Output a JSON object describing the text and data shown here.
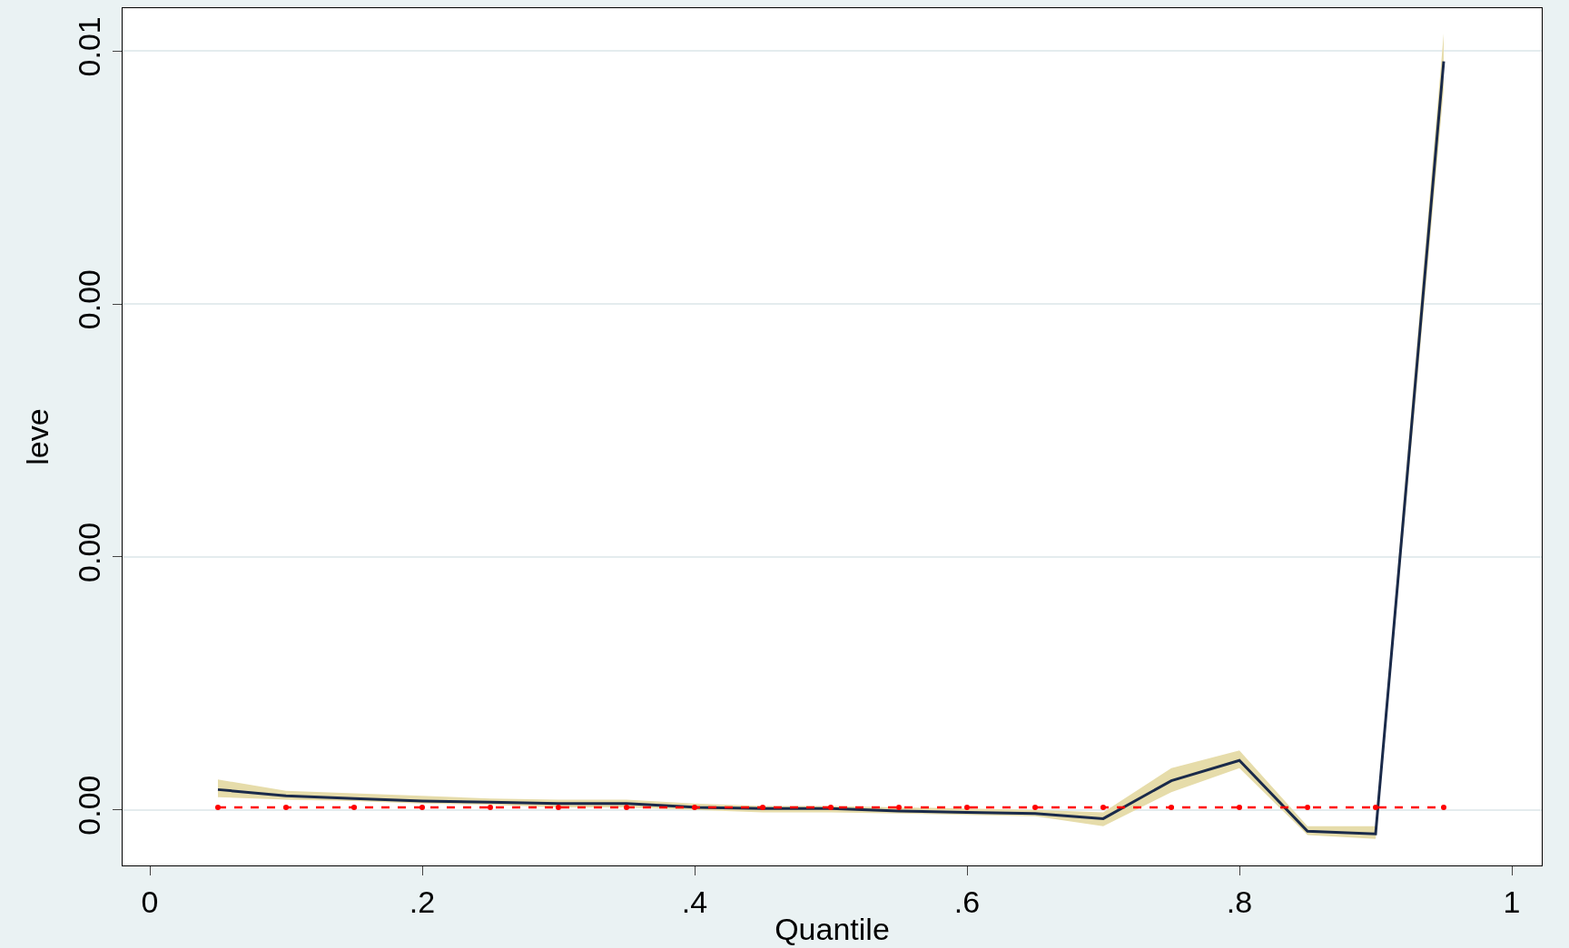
{
  "chart_data": {
    "type": "line",
    "xlabel": "Quantile",
    "ylabel": "leve",
    "x": [
      0.05,
      0.1,
      0.15,
      0.2,
      0.25,
      0.3,
      0.35,
      0.4,
      0.45,
      0.5,
      0.55,
      0.6,
      0.65,
      0.7,
      0.75,
      0.8,
      0.85,
      0.9,
      0.95
    ],
    "series": [
      {
        "color": "#1a2a4a",
        "line_style": "solid",
        "marker": "none",
        "values": [
          0.00016,
          0.00011,
          9e-05,
          7e-05,
          6e-05,
          5e-05,
          5e-05,
          2e-05,
          1e-05,
          1e-05,
          -1e-05,
          -2e-05,
          -3e-05,
          -7e-05,
          0.00023,
          0.00039,
          -0.00017,
          -0.00019,
          0.00592
        ],
        "lower": [
          0.0001,
          8e-05,
          7e-05,
          5e-05,
          4e-05,
          2e-05,
          2e-05,
          0.0,
          -2e-05,
          -2e-05,
          -3e-05,
          -4e-05,
          -5e-05,
          -0.00013,
          0.00014,
          0.00033,
          -0.0002,
          -0.00023,
          0.0057
        ],
        "upper": [
          0.00024,
          0.00015,
          0.00013,
          0.00011,
          9e-05,
          8e-05,
          8e-05,
          5e-05,
          3e-05,
          3e-05,
          2e-05,
          1e-05,
          0.0,
          -2e-05,
          0.00033,
          0.00047,
          -0.00013,
          -0.00013,
          0.00614
        ]
      },
      {
        "color": "#ff0000",
        "line_style": "dashed",
        "marker": "circle",
        "values": [
          2e-05,
          2e-05,
          2e-05,
          2e-05,
          2e-05,
          2e-05,
          2e-05,
          2e-05,
          2e-05,
          2e-05,
          2e-05,
          2e-05,
          2e-05,
          2e-05,
          2e-05,
          2e-05,
          2e-05,
          2e-05,
          2e-05
        ]
      }
    ],
    "xlim": [
      -0.02,
      1.022
    ],
    "xticks": [
      {
        "value": 0,
        "label": "0"
      },
      {
        "value": 0.2,
        "label": ".2"
      },
      {
        "value": 0.4,
        "label": ".4"
      },
      {
        "value": 0.6,
        "label": ".6"
      },
      {
        "value": 0.8,
        "label": ".8"
      },
      {
        "value": 1,
        "label": "1"
      }
    ],
    "ylim": [
      -0.00044,
      0.00634
    ],
    "yticks": [
      {
        "value": 0,
        "label": "0.00"
      },
      {
        "value": 0.002,
        "label": "0.00"
      },
      {
        "value": 0.004,
        "label": "0.00"
      },
      {
        "value": 0.006,
        "label": "0.01"
      }
    ],
    "grid": "y"
  }
}
